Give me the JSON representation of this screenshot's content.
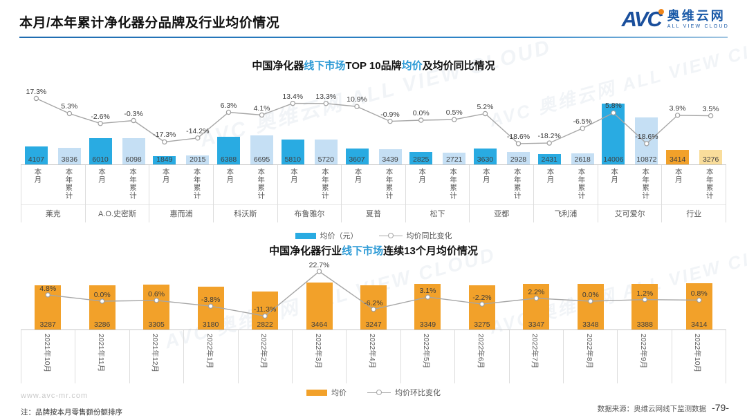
{
  "header": {
    "title": "本月/本年累计净化器分品牌及行业均价情况",
    "logo": {
      "avc": "AVC",
      "brand": "奥维云网",
      "tagline": "ALL VIEW CLOUD"
    }
  },
  "watermark": "AVC 奥维云网 ALL VIEW CLOUD",
  "footer": {
    "website": "www.avc-mr.com",
    "note": "注：品牌按本月零售额份额排序",
    "source": "数据来源：奥维云网线下监测数据",
    "page": "-79-"
  },
  "colors": {
    "accent_blue": "#2e9bd6",
    "bar_month_blue": "#29abe2",
    "bar_ytd_blue": "#c5dff4",
    "bar_month_orange": "#f2a12a",
    "bar_ytd_orange": "#f9dd9b",
    "line_gray": "#a6a6a6"
  },
  "chart_data": [
    {
      "type": "bar",
      "title_parts": [
        {
          "text": "中国净化器",
          "accent": false
        },
        {
          "text": "线下市场",
          "accent": true
        },
        {
          "text": "TOP 10品牌",
          "accent": false
        },
        {
          "text": "均价",
          "accent": true
        },
        {
          "text": "及均价同比情况",
          "accent": false
        }
      ],
      "categories": [
        "莱克",
        "A.O.史密斯",
        "惠而浦",
        "科沃斯",
        "布鲁雅尔",
        "夏普",
        "松下",
        "亚都",
        "飞利浦",
        "艾可爱尔",
        "行业"
      ],
      "col_labels": [
        "本月",
        "本年累计"
      ],
      "series": [
        {
          "name": "本月",
          "values": [
            4107,
            6010,
            1849,
            6388,
            5810,
            3607,
            2825,
            3630,
            2431,
            14006,
            3414
          ]
        },
        {
          "name": "本年累计",
          "values": [
            3836,
            6098,
            2015,
            6695,
            5720,
            3439,
            2721,
            2928,
            2618,
            10872,
            3276
          ]
        }
      ],
      "line": {
        "name": "均价同比变化",
        "unit": "%",
        "values": [
          17.3,
          5.3,
          -2.6,
          -0.3,
          -17.3,
          -14.2,
          6.3,
          4.1,
          13.4,
          13.3,
          10.9,
          -0.9,
          0.0,
          0.5,
          5.2,
          -18.6,
          -18.2,
          -6.5,
          5.8,
          -18.6,
          3.9,
          3.5
        ]
      },
      "legend": [
        "均价（元）",
        "均价同比变化"
      ],
      "ylabel": "均价（元）",
      "ylim": [
        0,
        14006
      ]
    },
    {
      "type": "bar",
      "title_parts": [
        {
          "text": "中国净化器行业",
          "accent": false
        },
        {
          "text": "线下市场",
          "accent": true
        },
        {
          "text": "连续13个月均价情况",
          "accent": false
        }
      ],
      "categories": [
        "2021年10月",
        "2021年11月",
        "2021年12月",
        "2022年1月",
        "2022年2月",
        "2022年3月",
        "2022年4月",
        "2022年5月",
        "2022年6月",
        "2022年7月",
        "2022年8月",
        "2022年9月",
        "2022年10月"
      ],
      "values": [
        3287,
        3286,
        3305,
        3180,
        2822,
        3464,
        3247,
        3349,
        3275,
        3347,
        3348,
        3388,
        3414
      ],
      "line": {
        "name": "均价环比变化",
        "unit": "%",
        "values": [
          4.8,
          0.0,
          0.6,
          -3.8,
          -11.3,
          22.7,
          -6.2,
          3.1,
          -2.2,
          2.2,
          0.0,
          1.2,
          0.8
        ]
      },
      "legend": [
        "均价",
        "均价环比变化"
      ],
      "ylabel": "均价",
      "ylim": [
        0,
        3464
      ]
    }
  ]
}
